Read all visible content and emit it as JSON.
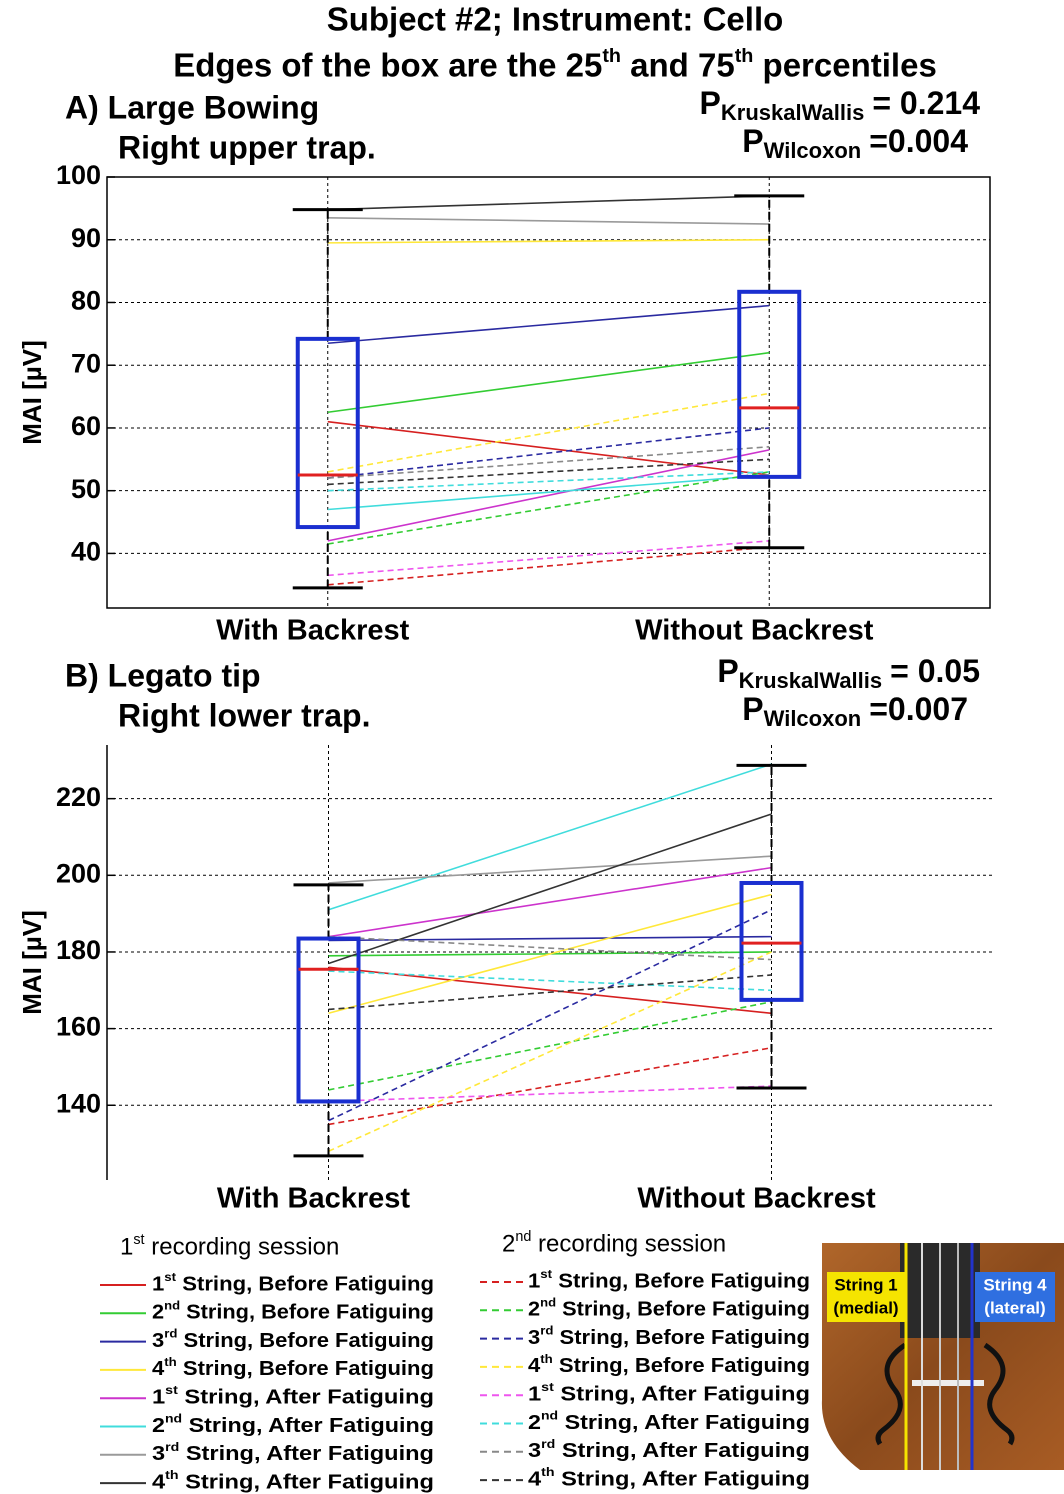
{
  "title": "Subject #2; Instrument: Cello",
  "subtitle": "Edges of the box are the 25th and 75th percentiles",
  "chart_data": [
    {
      "type": "box",
      "panel_title": [
        "A) Large Bowing",
        "Right upper trap."
      ],
      "stats": [
        {
          "symbol": "P",
          "subscript": "KruskalWallis",
          "text": "= 0.214"
        },
        {
          "symbol": "P",
          "subscript": "Wilcoxon",
          "text": "=0.004"
        }
      ],
      "ylabel": "MAI [µV]",
      "categories": [
        "With Backrest",
        "Without Backrest"
      ],
      "ylim": [
        31.3,
        100
      ],
      "yticks": [
        40,
        50,
        60,
        70,
        80,
        90,
        100
      ],
      "grid": true,
      "frame": true,
      "boxes": [
        {
          "q1": 44.2,
          "median": 52.5,
          "q3": 74.2,
          "whisker_low": 34.5,
          "whisker_high": 94.8
        },
        {
          "q1": 52.2,
          "median": 63.2,
          "q3": 81.7,
          "whisker_low": 40.9,
          "whisker_high": 97
        }
      ],
      "series": [
        {
          "values": [
            61,
            52.5
          ]
        },
        {
          "values": [
            62.5,
            72
          ]
        },
        {
          "values": [
            73.5,
            79.5
          ]
        },
        {
          "values": [
            89.5,
            90
          ]
        },
        {
          "values": [
            42,
            56.5
          ]
        },
        {
          "values": [
            47,
            52.5
          ]
        },
        {
          "values": [
            93.5,
            92.5
          ]
        },
        {
          "values": [
            94.8,
            97
          ]
        },
        {
          "values": [
            35,
            41
          ]
        },
        {
          "values": [
            41.5,
            53
          ]
        },
        {
          "values": [
            52,
            60
          ]
        },
        {
          "values": [
            53,
            65.5
          ]
        },
        {
          "values": [
            36.5,
            42
          ]
        },
        {
          "values": [
            50,
            53
          ]
        },
        {
          "values": [
            52,
            57
          ]
        },
        {
          "values": [
            51,
            55
          ]
        }
      ]
    },
    {
      "type": "box",
      "panel_title": [
        "B) Legato tip",
        "Right lower trap."
      ],
      "stats": [
        {
          "symbol": "P",
          "subscript": "KruskalWallis",
          "text": "= 0.05"
        },
        {
          "symbol": "P",
          "subscript": "Wilcoxon",
          "text": "=0.007"
        }
      ],
      "ylabel": "MAI [µV]",
      "categories": [
        "With Backrest",
        "Without Backrest"
      ],
      "ylim": [
        120.5,
        234
      ],
      "yticks": [
        140,
        160,
        180,
        200,
        220
      ],
      "grid": true,
      "frame": false,
      "boxes": [
        {
          "q1": 141,
          "median": 175.5,
          "q3": 183.5,
          "whisker_low": 126.8,
          "whisker_high": 197.5
        },
        {
          "q1": 167.5,
          "median": 182.3,
          "q3": 198,
          "whisker_low": 144.5,
          "whisker_high": 228.7
        }
      ],
      "series": [
        {
          "values": [
            176,
            164
          ]
        },
        {
          "values": [
            179,
            180
          ]
        },
        {
          "values": [
            183,
            184
          ]
        },
        {
          "values": [
            164,
            195
          ]
        },
        {
          "values": [
            184,
            202
          ]
        },
        {
          "values": [
            191,
            229
          ]
        },
        {
          "values": [
            198,
            205
          ]
        },
        {
          "values": [
            177,
            216
          ]
        },
        {
          "values": [
            135,
            155
          ]
        },
        {
          "values": [
            144,
            167
          ]
        },
        {
          "values": [
            136,
            191
          ]
        },
        {
          "values": [
            128,
            180
          ]
        },
        {
          "values": [
            141,
            145
          ]
        },
        {
          "values": [
            175,
            170
          ]
        },
        {
          "values": [
            184,
            178
          ]
        },
        {
          "values": [
            165,
            174
          ]
        }
      ]
    }
  ],
  "legend": {
    "groups": [
      {
        "title": "1st recording session",
        "line_style": "solid",
        "entries": [
          {
            "name": "1st String, Before Fatiguing",
            "color": "#d62020"
          },
          {
            "name": "2nd String, Before Fatiguing",
            "color": "#33cc33"
          },
          {
            "name": "3rd String, Before Fatiguing",
            "color": "#2a2aa0"
          },
          {
            "name": "4th String, Before Fatiguing",
            "color": "#ffe83a"
          },
          {
            "name": "1st String, After Fatiguing",
            "color": "#cc33cc"
          },
          {
            "name": "2nd String, After Fatiguing",
            "color": "#40dcdc"
          },
          {
            "name": "3rd String, After Fatiguing",
            "color": "#9a9a9a"
          },
          {
            "name": "4th String, After Fatiguing",
            "color": "#333333"
          }
        ]
      },
      {
        "title": "2nd recording session",
        "line_style": "dashed",
        "entries": [
          {
            "name": "1st String, Before Fatiguing",
            "color": "#d62020"
          },
          {
            "name": "2nd String, Before Fatiguing",
            "color": "#33cc33"
          },
          {
            "name": "3rd String, Before Fatiguing",
            "color": "#2a2aa0"
          },
          {
            "name": "4th String, Before Fatiguing",
            "color": "#ffe83a"
          },
          {
            "name": "1st String, After Fatiguing",
            "color": "#ee55ee"
          },
          {
            "name": "2nd String, After Fatiguing",
            "color": "#40dcdc"
          },
          {
            "name": "3rd String, After Fatiguing",
            "color": "#888888"
          },
          {
            "name": "4th String, After Fatiguing",
            "color": "#333333"
          }
        ]
      }
    ]
  },
  "image_labels": [
    [
      "String 1",
      "(medial)"
    ],
    [
      "String 4",
      "(lateral)"
    ]
  ]
}
